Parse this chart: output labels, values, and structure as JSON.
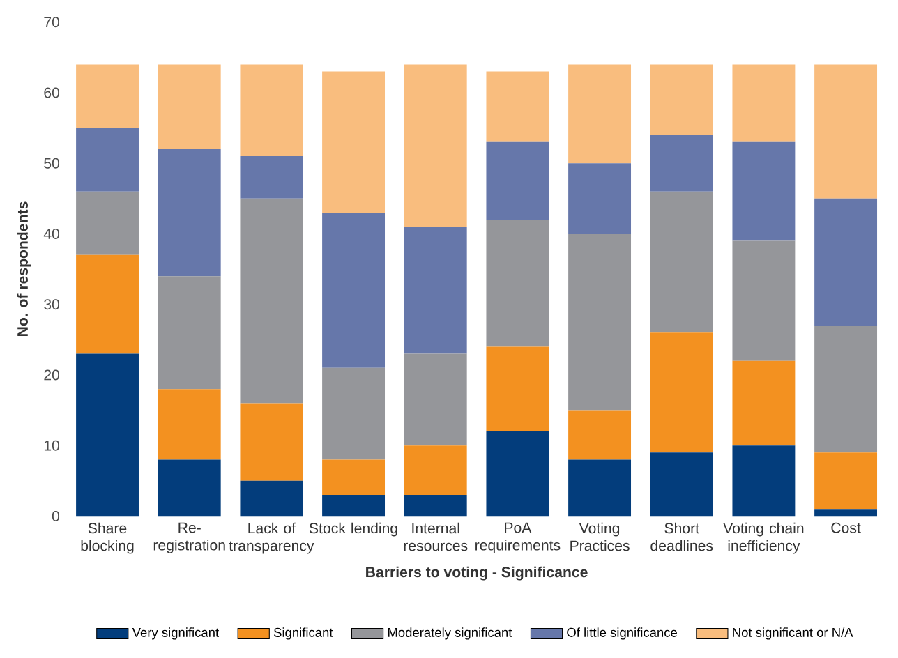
{
  "chart_data": {
    "type": "bar",
    "stacked": true,
    "xlabel": "Barriers to voting - Significance",
    "ylabel": "No. of respondents",
    "categories": [
      "Share blocking",
      "Re-registration",
      "Lack of transparency",
      "Stock lending",
      "Internal resources",
      "PoA requirements",
      "Voting Practices",
      "Short deadlines",
      "Voting chain inefficiency",
      "Cost"
    ],
    "series": [
      {
        "name": "Very significant",
        "color": "#033d7c",
        "values": [
          23,
          8,
          5,
          3,
          3,
          12,
          8,
          9,
          10,
          1
        ]
      },
      {
        "name": "Significant",
        "color": "#f39120",
        "values": [
          14,
          10,
          11,
          5,
          7,
          12,
          7,
          17,
          12,
          8
        ]
      },
      {
        "name": "Moderately significant",
        "color": "#95969a",
        "values": [
          9,
          16,
          29,
          13,
          13,
          18,
          25,
          20,
          17,
          18
        ]
      },
      {
        "name": "Of little significance",
        "color": "#6677aa",
        "values": [
          9,
          18,
          6,
          22,
          18,
          11,
          10,
          8,
          14,
          18
        ]
      },
      {
        "name": "Not significant or N/A",
        "color": "#f9bd7e",
        "values": [
          9,
          12,
          13,
          20,
          23,
          10,
          14,
          10,
          11,
          19
        ]
      }
    ],
    "ylim": [
      0,
      70
    ],
    "yticks": [
      0,
      10,
      20,
      30,
      40,
      50,
      60,
      70
    ],
    "legend": "bottom"
  }
}
